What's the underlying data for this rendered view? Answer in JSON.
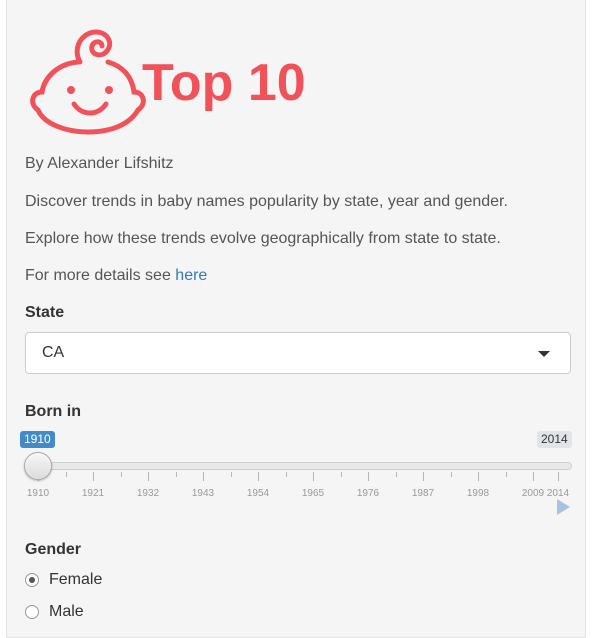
{
  "logo": {
    "title": "Top 10",
    "brand_color": "#f1525a"
  },
  "intro": {
    "author": "By Alexander Lifshitz",
    "description": "Discover trends in baby names popularity by state, year and gender.",
    "explore": "Explore how these trends evolve geographically from state to state.",
    "details_prefix": "For more details see",
    "details_link": "here"
  },
  "state": {
    "label": "State",
    "value": "CA"
  },
  "born_in": {
    "label": "Born in",
    "from": "1910",
    "to": "2014",
    "ticks": [
      "1910",
      "1921",
      "1932",
      "1943",
      "1954",
      "1965",
      "1976",
      "1987",
      "1998",
      "2009",
      "2014"
    ],
    "accent": "#428bca"
  },
  "gender": {
    "label": "Gender",
    "options": [
      {
        "label": "Female",
        "selected": true
      },
      {
        "label": "Male",
        "selected": false
      }
    ]
  }
}
